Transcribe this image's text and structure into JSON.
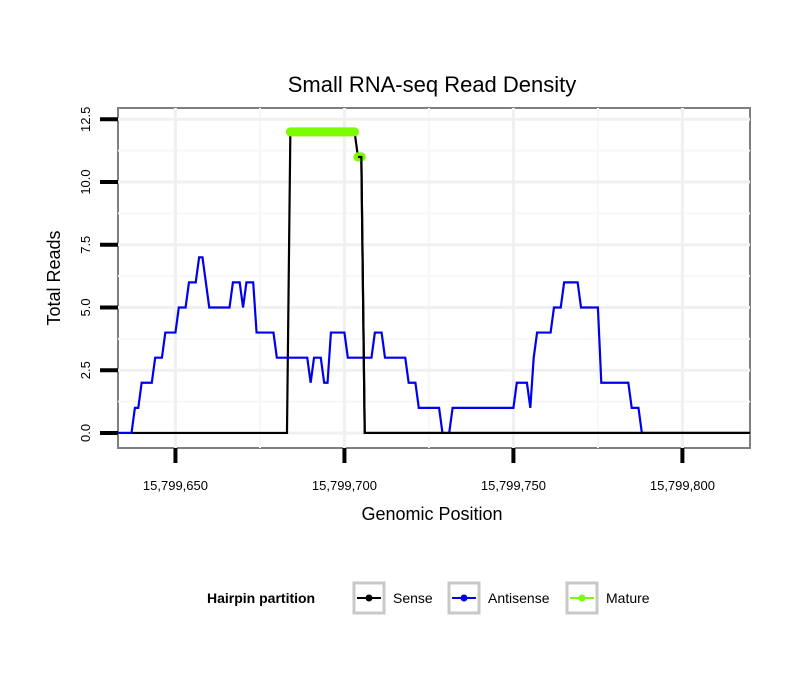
{
  "chart_data": {
    "type": "line",
    "title": "Small RNA-seq Read Density",
    "xlabel": "Genomic Position",
    "ylabel": "Total Reads",
    "xlim": [
      15799633,
      15799820
    ],
    "ylim": [
      -0.6,
      12.95
    ],
    "x_ticks": [
      {
        "value": 15799650,
        "label": "15,799,650"
      },
      {
        "value": 15799700,
        "label": "15,799,700"
      },
      {
        "value": 15799750,
        "label": "15,799,750"
      },
      {
        "value": 15799800,
        "label": "15,799,800"
      }
    ],
    "y_ticks": [
      {
        "value": 0,
        "label": "0.0"
      },
      {
        "value": 2.5,
        "label": "2.5"
      },
      {
        "value": 5,
        "label": "5.0"
      },
      {
        "value": 7.5,
        "label": "7.5"
      },
      {
        "value": 10,
        "label": "10.0"
      },
      {
        "value": 12.5,
        "label": "12.5"
      }
    ],
    "legend": {
      "title": "Hairpin partition",
      "position": "bottom",
      "entries": [
        {
          "name": "Sense",
          "color": "#000000"
        },
        {
          "name": "Antisense",
          "color": "#0000ee"
        },
        {
          "name": "Mature",
          "color": "#7cfc00"
        }
      ]
    },
    "series": [
      {
        "name": "Sense",
        "color": "#000000",
        "points": [
          [
            15799633,
            0
          ],
          [
            15799683,
            0
          ],
          [
            15799684,
            12
          ],
          [
            15799703,
            12
          ],
          [
            15799704,
            11
          ],
          [
            15799705,
            11
          ],
          [
            15799706,
            0
          ],
          [
            15799820,
            0
          ]
        ]
      },
      {
        "name": "Antisense",
        "color": "#0000ee",
        "points": [
          [
            15799633,
            0
          ],
          [
            15799637,
            0
          ],
          [
            15799638,
            1
          ],
          [
            15799639,
            1
          ],
          [
            15799640,
            2
          ],
          [
            15799643,
            2
          ],
          [
            15799644,
            3
          ],
          [
            15799646,
            3
          ],
          [
            15799647,
            4
          ],
          [
            15799650,
            4
          ],
          [
            15799651,
            5
          ],
          [
            15799653,
            5
          ],
          [
            15799654,
            6
          ],
          [
            15799656,
            6
          ],
          [
            15799657,
            7
          ],
          [
            15799658,
            7
          ],
          [
            15799660,
            5
          ],
          [
            15799666,
            5
          ],
          [
            15799667,
            6
          ],
          [
            15799669,
            6
          ],
          [
            15799670,
            5
          ],
          [
            15799671,
            6
          ],
          [
            15799673,
            6
          ],
          [
            15799674,
            4
          ],
          [
            15799679,
            4
          ],
          [
            15799680,
            3
          ],
          [
            15799689,
            3
          ],
          [
            15799690,
            2
          ],
          [
            15799691,
            3
          ],
          [
            15799693,
            3
          ],
          [
            15799694,
            2
          ],
          [
            15799695,
            2
          ],
          [
            15799696,
            4
          ],
          [
            15799700,
            4
          ],
          [
            15799701,
            3
          ],
          [
            15799708,
            3
          ],
          [
            15799709,
            4
          ],
          [
            15799711,
            4
          ],
          [
            15799712,
            3
          ],
          [
            15799718,
            3
          ],
          [
            15799719,
            2
          ],
          [
            15799721,
            2
          ],
          [
            15799722,
            1
          ],
          [
            15799728,
            1
          ],
          [
            15799729,
            0
          ],
          [
            15799731,
            0
          ],
          [
            15799732,
            1
          ],
          [
            15799750,
            1
          ],
          [
            15799751,
            2
          ],
          [
            15799754,
            2
          ],
          [
            15799755,
            1
          ],
          [
            15799756,
            3
          ],
          [
            15799757,
            4
          ],
          [
            15799761,
            4
          ],
          [
            15799762,
            5
          ],
          [
            15799764,
            5
          ],
          [
            15799765,
            6
          ],
          [
            15799769,
            6
          ],
          [
            15799770,
            5
          ],
          [
            15799775,
            5
          ],
          [
            15799776,
            2
          ],
          [
            15799784,
            2
          ],
          [
            15799785,
            1
          ],
          [
            15799787,
            1
          ],
          [
            15799788,
            0
          ],
          [
            15799820,
            0
          ]
        ]
      },
      {
        "name": "Mature",
        "color": "#7cfc00",
        "points": [
          [
            15799684,
            12
          ],
          [
            15799703,
            12
          ]
        ],
        "extra_points": [
          [
            15799704,
            11
          ],
          [
            15799705,
            11
          ]
        ]
      }
    ]
  }
}
